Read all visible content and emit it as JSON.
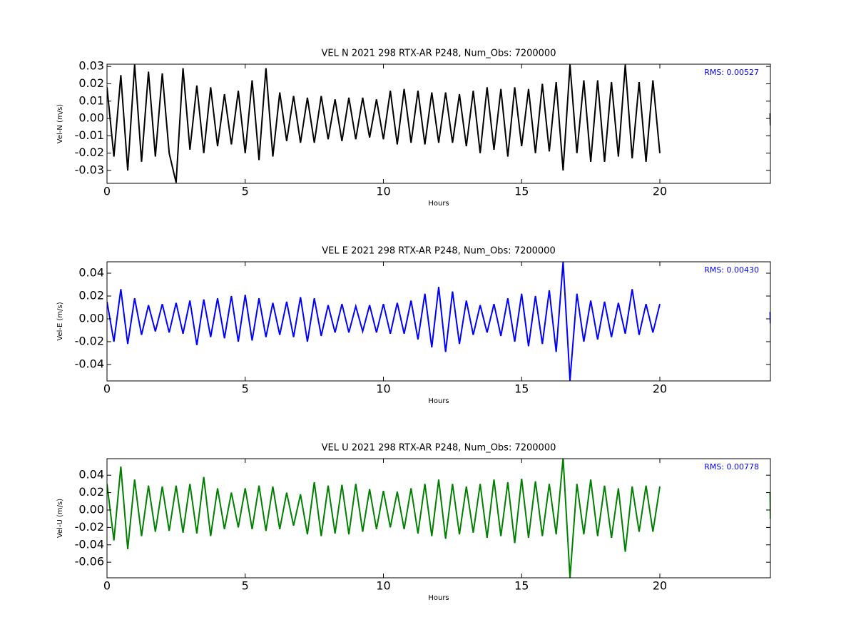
{
  "chart_data": [
    {
      "type": "line",
      "title": "VEL N 2021 298 RTX-AR  P248, Num_Obs: 7200000",
      "xlabel": "Hours",
      "ylabel": "Vel-N (m/s)",
      "annotation": "RMS:  0.00527",
      "xlim": [
        0,
        24
      ],
      "xticks": [
        0,
        5,
        10,
        15,
        20
      ],
      "ylim": [
        -0.0374,
        0.0313
      ],
      "yticks": [
        0.03,
        0.02,
        0.01,
        {
          "value": 0,
          "label": "0.00"
        },
        -0.01,
        -0.02,
        -0.03
      ],
      "x": [
        0,
        0.25,
        0.5,
        0.75,
        1,
        1.25,
        1.5,
        1.75,
        2,
        2.25,
        2.5,
        2.75,
        3,
        3.25,
        3.5,
        3.75,
        4,
        4.25,
        4.5,
        4.75,
        5,
        5.25,
        5.5,
        5.75,
        6,
        6.25,
        6.5,
        6.75,
        7,
        7.25,
        7.5,
        7.75,
        8,
        8.25,
        8.5,
        8.75,
        9,
        9.25,
        9.5,
        9.75,
        10,
        10.25,
        10.5,
        10.75,
        11,
        11.25,
        11.5,
        11.75,
        12,
        12.25,
        12.5,
        12.75,
        13,
        13.25,
        13.5,
        13.75,
        14,
        14.25,
        14.5,
        14.75,
        15,
        15.25,
        15.5,
        15.75,
        16,
        16.25,
        16.5,
        16.75,
        17,
        17.25,
        17.5,
        17.75,
        18,
        18.25,
        18.5,
        18.75,
        19,
        19.25,
        19.5,
        19.75,
        20,
        22,
        23.99,
        24
      ],
      "series": [
        {
          "name": "Vel-N",
          "color": "#000000",
          "values": [
            0.018,
            -0.022,
            0.025,
            -0.03,
            0.031,
            -0.025,
            0.027,
            -0.022,
            0.026,
            -0.02,
            -0.037,
            0.029,
            -0.018,
            0.019,
            -0.02,
            0.018,
            -0.016,
            0.014,
            -0.015,
            0.016,
            -0.02,
            0.022,
            -0.024,
            0.029,
            -0.022,
            0.015,
            -0.013,
            0.013,
            -0.014,
            0.012,
            -0.014,
            0.013,
            -0.012,
            0.011,
            -0.013,
            0.012,
            -0.012,
            0.012,
            -0.011,
            0.011,
            -0.012,
            0.016,
            -0.015,
            0.017,
            -0.014,
            0.016,
            -0.015,
            0.015,
            -0.014,
            0.015,
            -0.014,
            0.014,
            -0.016,
            0.016,
            -0.02,
            0.018,
            -0.018,
            0.017,
            -0.022,
            0.018,
            -0.016,
            0.017,
            -0.02,
            0.02,
            -0.019,
            0.021,
            -0.03,
            0.031,
            -0.02,
            0.022,
            -0.025,
            0.022,
            -0.025,
            0.021,
            -0.022,
            0.031,
            -0.023,
            0.021,
            -0.025,
            0.022,
            -0.02,
            null,
            0.003,
            -0.004
          ]
        }
      ]
    },
    {
      "type": "line",
      "title": "VEL E 2021 298 RTX-AR  P248, Num_Obs: 7200000",
      "xlabel": "Hours",
      "ylabel": "Vel-E (m/s)",
      "annotation": "RMS:  0.00430",
      "xlim": [
        0,
        24
      ],
      "xticks": [
        0,
        5,
        10,
        15,
        20
      ],
      "ylim": [
        -0.0544,
        0.05
      ],
      "yticks": [
        0.04,
        0.02,
        {
          "value": 0,
          "label": "0.00"
        },
        -0.02,
        -0.04
      ],
      "x": [
        0,
        0.25,
        0.5,
        0.75,
        1,
        1.25,
        1.5,
        1.75,
        2,
        2.25,
        2.5,
        2.75,
        3,
        3.25,
        3.5,
        3.75,
        4,
        4.25,
        4.5,
        4.75,
        5,
        5.25,
        5.5,
        5.75,
        6,
        6.25,
        6.5,
        6.75,
        7,
        7.25,
        7.5,
        7.75,
        8,
        8.25,
        8.5,
        8.75,
        9,
        9.25,
        9.5,
        9.75,
        10,
        10.25,
        10.5,
        10.75,
        11,
        11.25,
        11.5,
        11.75,
        12,
        12.25,
        12.5,
        12.75,
        13,
        13.25,
        13.5,
        13.75,
        14,
        14.25,
        14.5,
        14.75,
        15,
        15.25,
        15.5,
        15.75,
        16,
        16.25,
        16.5,
        16.75,
        17,
        17.25,
        17.5,
        17.75,
        18,
        18.25,
        18.5,
        18.75,
        19,
        19.25,
        19.5,
        19.75,
        20,
        22,
        23.99,
        24
      ],
      "series": [
        {
          "name": "Vel-E",
          "color": "#0000ff",
          "values": [
            0.015,
            -0.02,
            0.026,
            -0.022,
            0.018,
            -0.014,
            0.012,
            -0.011,
            0.013,
            -0.012,
            0.014,
            -0.013,
            0.016,
            -0.023,
            0.017,
            -0.016,
            0.018,
            -0.017,
            0.02,
            -0.02,
            0.021,
            -0.019,
            0.018,
            -0.016,
            0.014,
            -0.014,
            0.015,
            -0.016,
            0.019,
            -0.02,
            0.018,
            -0.015,
            0.012,
            -0.012,
            0.013,
            -0.012,
            0.011,
            -0.011,
            0.012,
            -0.012,
            0.013,
            -0.013,
            0.014,
            -0.013,
            0.016,
            -0.018,
            0.022,
            -0.025,
            0.028,
            -0.029,
            0.024,
            -0.022,
            0.016,
            -0.014,
            0.012,
            -0.012,
            0.013,
            -0.015,
            0.018,
            -0.02,
            0.022,
            -0.024,
            0.02,
            -0.022,
            0.025,
            -0.029,
            0.05,
            -0.054,
            0.022,
            -0.02,
            0.016,
            -0.018,
            0.015,
            -0.016,
            0.014,
            -0.013,
            0.026,
            -0.014,
            0.013,
            -0.012,
            0.013,
            null,
            0.006,
            -0.004
          ]
        }
      ]
    },
    {
      "type": "line",
      "title": "VEL U 2021 298 RTX-AR  P248, Num_Obs: 7200000",
      "xlabel": "Hours",
      "ylabel": "Vel-U (m/s)",
      "annotation": "RMS:  0.00778",
      "xlim": [
        0,
        24
      ],
      "xticks": [
        0,
        5,
        10,
        15,
        20
      ],
      "ylim": [
        -0.0779,
        0.059
      ],
      "yticks": [
        0.04,
        0.02,
        {
          "value": 0,
          "label": "0.00"
        },
        -0.02,
        -0.04,
        -0.06
      ],
      "x": [
        0,
        0.25,
        0.5,
        0.75,
        1,
        1.25,
        1.5,
        1.75,
        2,
        2.25,
        2.5,
        2.75,
        3,
        3.25,
        3.5,
        3.75,
        4,
        4.25,
        4.5,
        4.75,
        5,
        5.25,
        5.5,
        5.75,
        6,
        6.25,
        6.5,
        6.75,
        7,
        7.25,
        7.5,
        7.75,
        8,
        8.25,
        8.5,
        8.75,
        9,
        9.25,
        9.5,
        9.75,
        10,
        10.25,
        10.5,
        10.75,
        11,
        11.25,
        11.5,
        11.75,
        12,
        12.25,
        12.5,
        12.75,
        13,
        13.25,
        13.5,
        13.75,
        14,
        14.25,
        14.5,
        14.75,
        15,
        15.25,
        15.5,
        15.75,
        16,
        16.25,
        16.5,
        16.75,
        17,
        17.25,
        17.5,
        17.75,
        18,
        18.25,
        18.5,
        18.75,
        19,
        19.25,
        19.5,
        19.75,
        20,
        22,
        23.99,
        24
      ],
      "series": [
        {
          "name": "Vel-U",
          "color": "#008000",
          "values": [
            0.03,
            -0.035,
            0.05,
            -0.045,
            0.035,
            -0.03,
            0.028,
            -0.025,
            0.027,
            -0.024,
            0.028,
            -0.026,
            0.03,
            -0.027,
            0.038,
            -0.03,
            0.025,
            -0.022,
            0.02,
            -0.02,
            0.025,
            -0.022,
            0.028,
            -0.024,
            0.027,
            -0.022,
            0.02,
            -0.018,
            0.018,
            -0.028,
            0.032,
            -0.03,
            0.028,
            -0.027,
            0.029,
            -0.028,
            0.03,
            -0.025,
            0.024,
            -0.022,
            0.022,
            -0.02,
            0.021,
            -0.022,
            0.025,
            -0.027,
            0.03,
            -0.03,
            0.035,
            -0.033,
            0.03,
            -0.028,
            0.027,
            -0.026,
            0.03,
            -0.032,
            0.035,
            -0.03,
            0.032,
            -0.038,
            0.036,
            -0.032,
            0.033,
            -0.03,
            0.03,
            -0.028,
            0.06,
            -0.078,
            0.03,
            -0.028,
            0.035,
            -0.03,
            0.028,
            -0.032,
            0.025,
            -0.048,
            0.027,
            -0.025,
            0.028,
            -0.025,
            0.027,
            null,
            0.02,
            -0.01
          ]
        }
      ]
    }
  ]
}
